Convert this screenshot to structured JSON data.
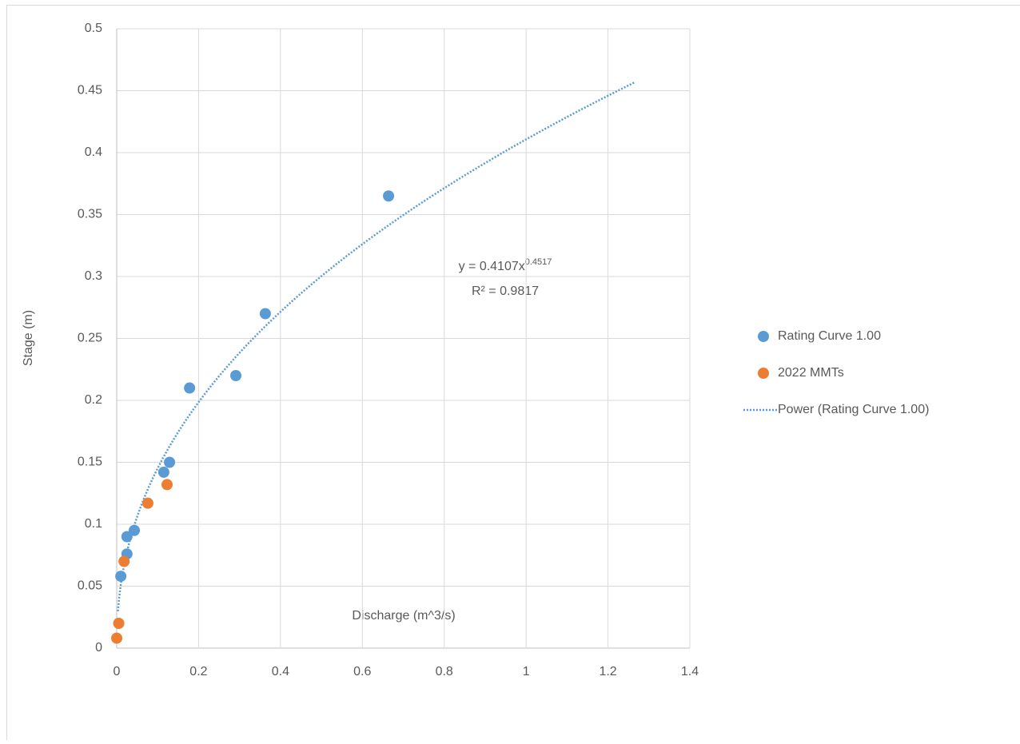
{
  "chart_data": {
    "type": "scatter",
    "x_label": "Discharge (m^3/s)",
    "y_label": "Stage (m)",
    "xlim": [
      0,
      1.4
    ],
    "xticks": [
      0,
      0.2,
      0.4,
      0.6,
      0.8,
      1,
      1.2,
      1.4
    ],
    "ylim": [
      0,
      0.5
    ],
    "yticks": [
      0,
      0.05,
      0.1,
      0.15,
      0.2,
      0.25,
      0.3,
      0.35,
      0.4,
      0.45,
      0.5
    ],
    "grid": true,
    "legend": "right",
    "series": [
      {
        "name": "Rating Curve 1.00",
        "color": "#5b9bd5",
        "x": [
          0.664,
          0.363,
          0.291,
          0.178,
          0.129,
          0.115,
          0.043,
          0.025,
          0.025,
          0.01
        ],
        "values": [
          0.365,
          0.27,
          0.22,
          0.21,
          0.15,
          0.142,
          0.095,
          0.09,
          0.076,
          0.058
        ]
      },
      {
        "name": "2022 MMTs",
        "color": "#ed7d31",
        "x": [
          0.0,
          0.005,
          0.018,
          0.076,
          0.123
        ],
        "values": [
          0.008,
          0.02,
          0.07,
          0.117,
          0.132
        ]
      }
    ],
    "trendline": {
      "name": "Power (Rating Curve 1.00)",
      "color": "#5b9bd5",
      "a": 0.4107,
      "b": 0.4517,
      "x_range": [
        0.003,
        1.265
      ],
      "equation": "y = 0.4107x",
      "exponent_label": "0.4517",
      "r2_label": "R² = 0.9817"
    }
  }
}
